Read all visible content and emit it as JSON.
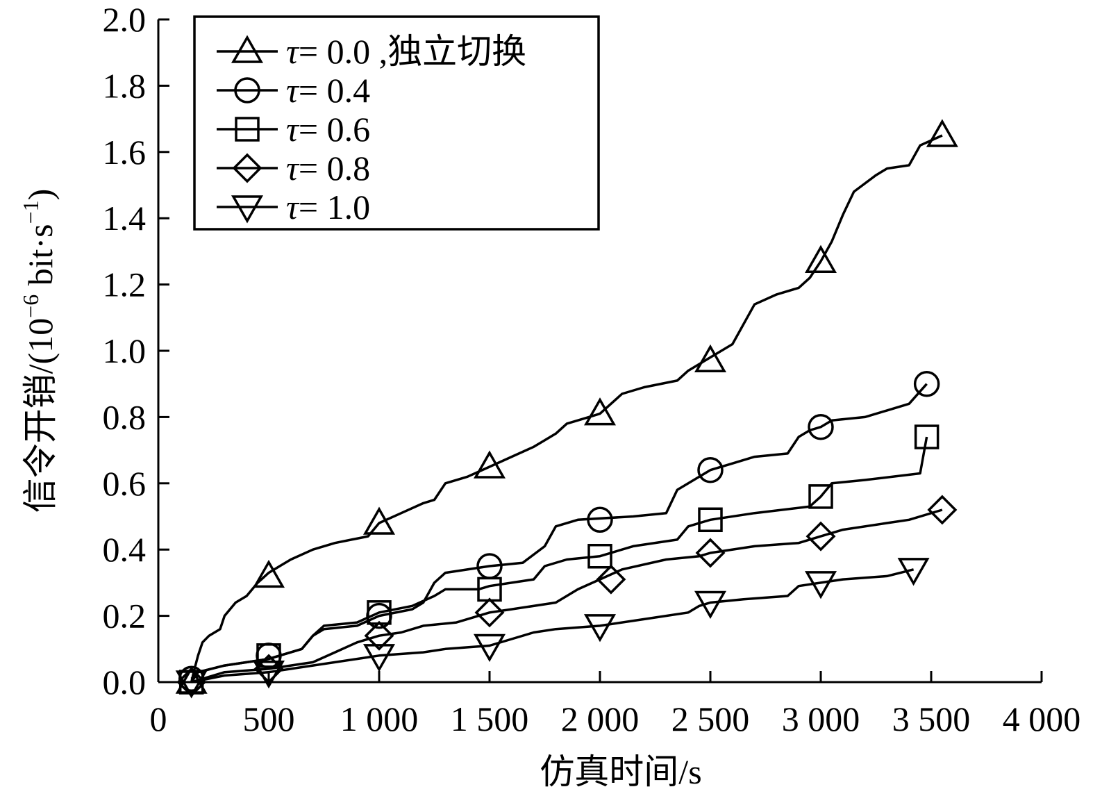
{
  "chart_data": {
    "type": "line",
    "title": "",
    "xlabel": "仿真时间/s",
    "ylabel": "信令开销/(10⁻⁶ bit·s⁻¹)",
    "ylabel_parts": {
      "prefix": "信令开销/(10",
      "exp1": "−6",
      "mid": " bit·s",
      "exp2": "−1",
      "suffix": ")"
    },
    "xlim": [
      0,
      4000
    ],
    "ylim": [
      0,
      2.0
    ],
    "x_ticks": [
      0,
      500,
      1000,
      1500,
      2000,
      2500,
      3000,
      3500,
      4000
    ],
    "x_tick_labels": [
      "0",
      "500",
      "1 000",
      "1 500",
      "2 000",
      "2 500",
      "3 000",
      "3 500",
      "4 000"
    ],
    "y_ticks": [
      0,
      0.2,
      0.4,
      0.6,
      0.8,
      1.0,
      1.2,
      1.4,
      1.6,
      1.8,
      2.0
    ],
    "y_tick_labels": [
      "0.0",
      "0.2",
      "0.4",
      "0.6",
      "0.8",
      "1.0",
      "1.2",
      "1.4",
      "1.6",
      "1.8",
      "2.0"
    ],
    "grid": false,
    "legend_position": "top-left",
    "series": [
      {
        "name": "τ= 0.0 ,独立切换",
        "legend_symbol": "τ",
        "legend_rest": "= 0.0 ,独立切换",
        "marker": "triangle-up",
        "line": [
          [
            150,
            0
          ],
          [
            160,
            0.03
          ],
          [
            180,
            0.08
          ],
          [
            200,
            0.12
          ],
          [
            230,
            0.14
          ],
          [
            280,
            0.16
          ],
          [
            300,
            0.2
          ],
          [
            350,
            0.24
          ],
          [
            400,
            0.26
          ],
          [
            450,
            0.3
          ],
          [
            500,
            0.33
          ],
          [
            550,
            0.35
          ],
          [
            600,
            0.37
          ],
          [
            700,
            0.4
          ],
          [
            800,
            0.42
          ],
          [
            950,
            0.44
          ],
          [
            1000,
            0.48
          ],
          [
            1100,
            0.51
          ],
          [
            1200,
            0.54
          ],
          [
            1250,
            0.55
          ],
          [
            1300,
            0.6
          ],
          [
            1400,
            0.62
          ],
          [
            1500,
            0.65
          ],
          [
            1600,
            0.68
          ],
          [
            1700,
            0.71
          ],
          [
            1800,
            0.75
          ],
          [
            1850,
            0.78
          ],
          [
            1950,
            0.8
          ],
          [
            2000,
            0.81
          ],
          [
            2050,
            0.84
          ],
          [
            2100,
            0.87
          ],
          [
            2200,
            0.89
          ],
          [
            2350,
            0.91
          ],
          [
            2400,
            0.94
          ],
          [
            2450,
            0.96
          ],
          [
            2500,
            0.98
          ],
          [
            2600,
            1.02
          ],
          [
            2700,
            1.14
          ],
          [
            2800,
            1.17
          ],
          [
            2900,
            1.19
          ],
          [
            2950,
            1.22
          ],
          [
            3000,
            1.27
          ],
          [
            3050,
            1.33
          ],
          [
            3100,
            1.41
          ],
          [
            3150,
            1.48
          ],
          [
            3250,
            1.53
          ],
          [
            3300,
            1.55
          ],
          [
            3400,
            1.56
          ],
          [
            3450,
            1.62
          ],
          [
            3550,
            1.65
          ]
        ],
        "markers": [
          [
            150,
            0
          ],
          [
            500,
            0.32
          ],
          [
            1000,
            0.48
          ],
          [
            1500,
            0.65
          ],
          [
            2000,
            0.81
          ],
          [
            2500,
            0.97
          ],
          [
            3000,
            1.27
          ],
          [
            3550,
            1.65
          ]
        ]
      },
      {
        "name": "τ= 0.4",
        "legend_symbol": "τ",
        "legend_rest": "= 0.4",
        "marker": "circle",
        "line": [
          [
            150,
            0.01
          ],
          [
            180,
            0.03
          ],
          [
            300,
            0.05
          ],
          [
            500,
            0.07
          ],
          [
            650,
            0.1
          ],
          [
            700,
            0.14
          ],
          [
            750,
            0.16
          ],
          [
            900,
            0.17
          ],
          [
            1000,
            0.2
          ],
          [
            1150,
            0.22
          ],
          [
            1200,
            0.24
          ],
          [
            1250,
            0.3
          ],
          [
            1300,
            0.33
          ],
          [
            1500,
            0.35
          ],
          [
            1650,
            0.36
          ],
          [
            1750,
            0.41
          ],
          [
            1800,
            0.47
          ],
          [
            1900,
            0.49
          ],
          [
            2150,
            0.5
          ],
          [
            2300,
            0.51
          ],
          [
            2350,
            0.58
          ],
          [
            2450,
            0.62
          ],
          [
            2500,
            0.64
          ],
          [
            2600,
            0.66
          ],
          [
            2700,
            0.68
          ],
          [
            2850,
            0.69
          ],
          [
            2900,
            0.74
          ],
          [
            2950,
            0.76
          ],
          [
            3000,
            0.77
          ],
          [
            3050,
            0.79
          ],
          [
            3200,
            0.8
          ],
          [
            3300,
            0.82
          ],
          [
            3400,
            0.84
          ],
          [
            3480,
            0.9
          ]
        ],
        "markers": [
          [
            150,
            0.01
          ],
          [
            500,
            0.08
          ],
          [
            1000,
            0.2
          ],
          [
            1500,
            0.35
          ],
          [
            2000,
            0.49
          ],
          [
            2500,
            0.64
          ],
          [
            3000,
            0.77
          ],
          [
            3480,
            0.9
          ]
        ]
      },
      {
        "name": "τ= 0.6",
        "legend_symbol": "τ",
        "legend_rest": "= 0.6",
        "marker": "square",
        "line": [
          [
            150,
            0
          ],
          [
            180,
            0.03
          ],
          [
            300,
            0.05
          ],
          [
            500,
            0.07
          ],
          [
            650,
            0.1
          ],
          [
            700,
            0.14
          ],
          [
            750,
            0.17
          ],
          [
            900,
            0.18
          ],
          [
            1000,
            0.21
          ],
          [
            1150,
            0.23
          ],
          [
            1250,
            0.26
          ],
          [
            1300,
            0.28
          ],
          [
            1450,
            0.28
          ],
          [
            1500,
            0.29
          ],
          [
            1700,
            0.31
          ],
          [
            1750,
            0.35
          ],
          [
            1850,
            0.37
          ],
          [
            2000,
            0.38
          ],
          [
            2150,
            0.41
          ],
          [
            2350,
            0.43
          ],
          [
            2400,
            0.47
          ],
          [
            2500,
            0.49
          ],
          [
            2700,
            0.51
          ],
          [
            2950,
            0.53
          ],
          [
            3000,
            0.56
          ],
          [
            3050,
            0.6
          ],
          [
            3200,
            0.61
          ],
          [
            3450,
            0.63
          ],
          [
            3480,
            0.74
          ]
        ],
        "markers": [
          [
            150,
            0
          ],
          [
            500,
            0.08
          ],
          [
            1000,
            0.21
          ],
          [
            1500,
            0.28
          ],
          [
            2000,
            0.38
          ],
          [
            2500,
            0.49
          ],
          [
            3000,
            0.56
          ],
          [
            3480,
            0.74
          ]
        ]
      },
      {
        "name": "τ= 0.8",
        "legend_symbol": "τ",
        "legend_rest": "= 0.8",
        "marker": "diamond",
        "line": [
          [
            150,
            0
          ],
          [
            300,
            0.03
          ],
          [
            500,
            0.04
          ],
          [
            700,
            0.06
          ],
          [
            800,
            0.09
          ],
          [
            900,
            0.12
          ],
          [
            1000,
            0.14
          ],
          [
            1100,
            0.15
          ],
          [
            1200,
            0.17
          ],
          [
            1350,
            0.18
          ],
          [
            1450,
            0.2
          ],
          [
            1500,
            0.21
          ],
          [
            1600,
            0.22
          ],
          [
            1800,
            0.24
          ],
          [
            1900,
            0.28
          ],
          [
            2000,
            0.31
          ],
          [
            2100,
            0.34
          ],
          [
            2300,
            0.37
          ],
          [
            2450,
            0.38
          ],
          [
            2500,
            0.39
          ],
          [
            2700,
            0.41
          ],
          [
            2900,
            0.42
          ],
          [
            3000,
            0.44
          ],
          [
            3100,
            0.46
          ],
          [
            3300,
            0.48
          ],
          [
            3400,
            0.49
          ],
          [
            3550,
            0.52
          ]
        ],
        "markers": [
          [
            150,
            0
          ],
          [
            500,
            0.04
          ],
          [
            1000,
            0.14
          ],
          [
            1500,
            0.21
          ],
          [
            2050,
            0.31
          ],
          [
            2500,
            0.39
          ],
          [
            3000,
            0.44
          ],
          [
            3550,
            0.52
          ]
        ]
      },
      {
        "name": "τ= 1.0",
        "legend_symbol": "τ",
        "legend_rest": "= 1.0",
        "marker": "triangle-down",
        "line": [
          [
            150,
            0
          ],
          [
            300,
            0.02
          ],
          [
            500,
            0.03
          ],
          [
            700,
            0.05
          ],
          [
            900,
            0.07
          ],
          [
            1000,
            0.08
          ],
          [
            1200,
            0.09
          ],
          [
            1300,
            0.1
          ],
          [
            1500,
            0.11
          ],
          [
            1600,
            0.13
          ],
          [
            1700,
            0.15
          ],
          [
            1800,
            0.16
          ],
          [
            2000,
            0.17
          ],
          [
            2200,
            0.19
          ],
          [
            2400,
            0.21
          ],
          [
            2450,
            0.23
          ],
          [
            2500,
            0.24
          ],
          [
            2650,
            0.25
          ],
          [
            2850,
            0.26
          ],
          [
            2900,
            0.29
          ],
          [
            3000,
            0.3
          ],
          [
            3100,
            0.31
          ],
          [
            3300,
            0.32
          ],
          [
            3420,
            0.34
          ]
        ],
        "markers": [
          [
            150,
            0
          ],
          [
            500,
            0.03
          ],
          [
            1000,
            0.08
          ],
          [
            1500,
            0.11
          ],
          [
            2000,
            0.17
          ],
          [
            2500,
            0.24
          ],
          [
            3000,
            0.3
          ],
          [
            3420,
            0.34
          ]
        ]
      }
    ]
  }
}
